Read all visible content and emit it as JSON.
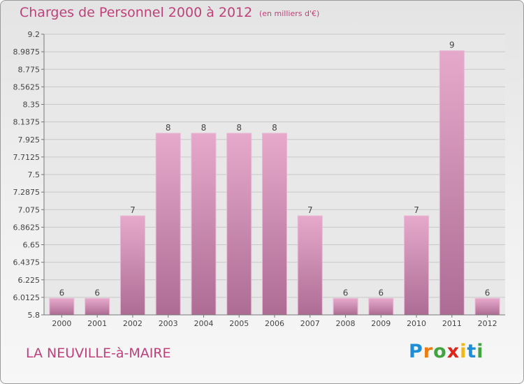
{
  "header": {
    "title": "Charges de Personnel 2000 à 2012",
    "subtitle": "(en milliers d'€)"
  },
  "footer": {
    "commune": "LA NEUVILLE-à-MAIRE",
    "brand_letters": [
      "P",
      "r",
      "o",
      "x",
      "i",
      "t",
      "i"
    ],
    "brand_colors": [
      "#1f8ed8",
      "#f07a12",
      "#43a340",
      "#e2231a",
      "#f2b61d",
      "#1f8ed8",
      "#43a340"
    ]
  },
  "chart_data": {
    "type": "bar",
    "title": "Charges de Personnel 2000 à 2012",
    "subtitle": "(en milliers d'€)",
    "categories": [
      "2000",
      "2001",
      "2002",
      "2003",
      "2004",
      "2005",
      "2006",
      "2007",
      "2008",
      "2009",
      "2010",
      "2011",
      "2012"
    ],
    "values": [
      6,
      6,
      7,
      8,
      8,
      8,
      8,
      7,
      6,
      6,
      7,
      9,
      6
    ],
    "data_labels": [
      "6",
      "6",
      "7",
      "8",
      "8",
      "8",
      "8",
      "7",
      "6",
      "6",
      "7",
      "9",
      "6"
    ],
    "yticks": [
      "9.2",
      "8.9875",
      "8.775",
      "8.5625",
      "8.35",
      "8.1375",
      "7.925",
      "7.7125",
      "7.5",
      "7.2875",
      "7.075",
      "6.8625",
      "6.65",
      "6.4375",
      "6.225",
      "6.0125",
      "5.8"
    ],
    "ylim": [
      5.8,
      9.2
    ],
    "bar_color": "#d98fba",
    "grid": true
  }
}
